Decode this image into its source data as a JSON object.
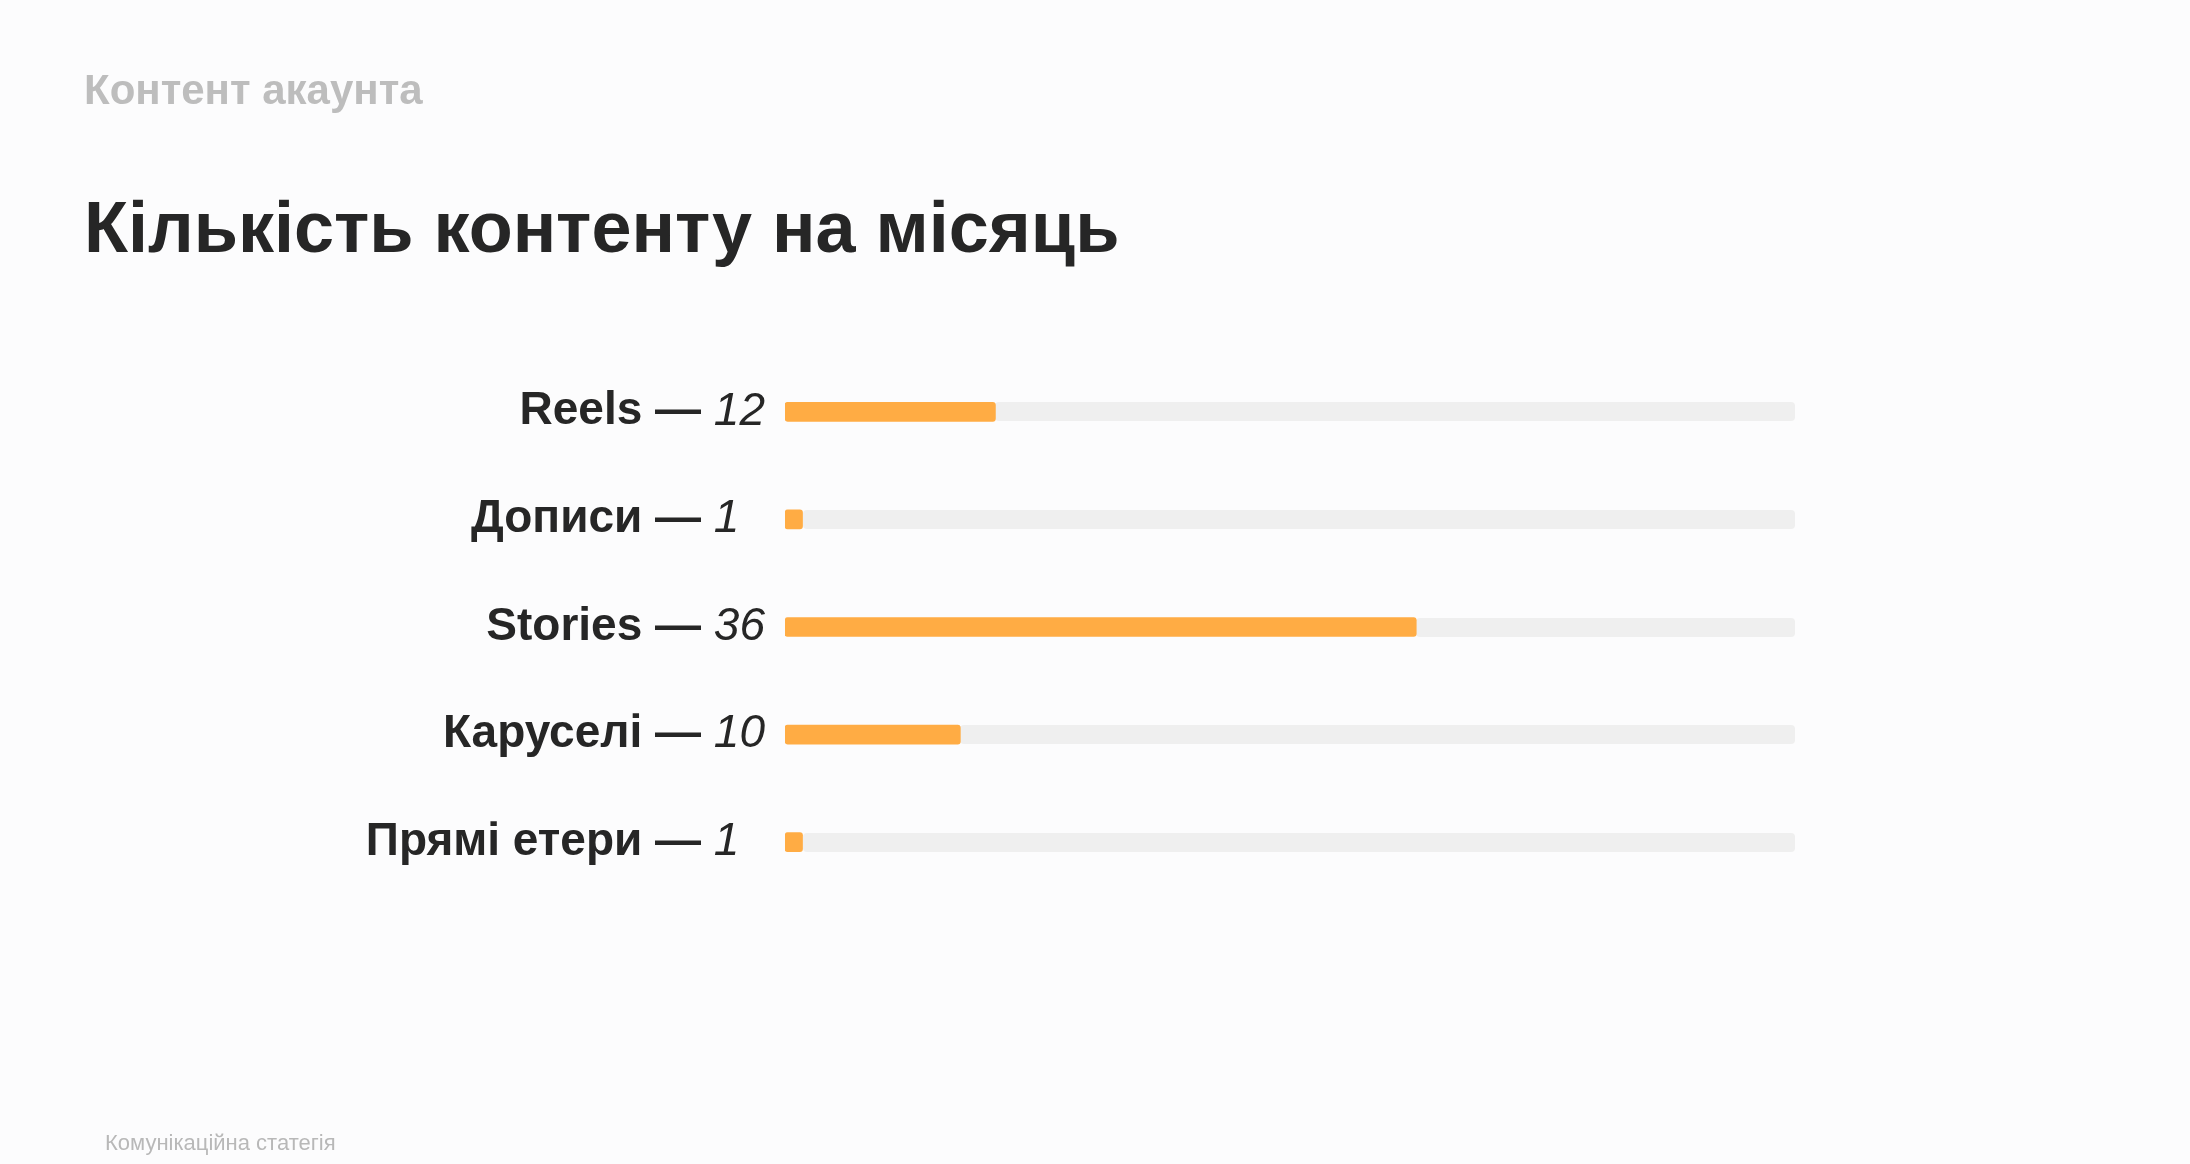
{
  "chart_data": {
    "type": "bar",
    "orientation": "horizontal",
    "subtitle": "Контент акаунта",
    "title": "Кількість контенту на місяць",
    "categories": [
      "Reels —",
      "Дописи —",
      "Stories —",
      "Каруселі —",
      "Прямі етери —"
    ],
    "values": [
      12,
      1,
      36,
      10,
      1
    ],
    "data_labels": true,
    "color": "#ffac44",
    "annotations": [
      "Комунікаційна статегія"
    ]
  }
}
